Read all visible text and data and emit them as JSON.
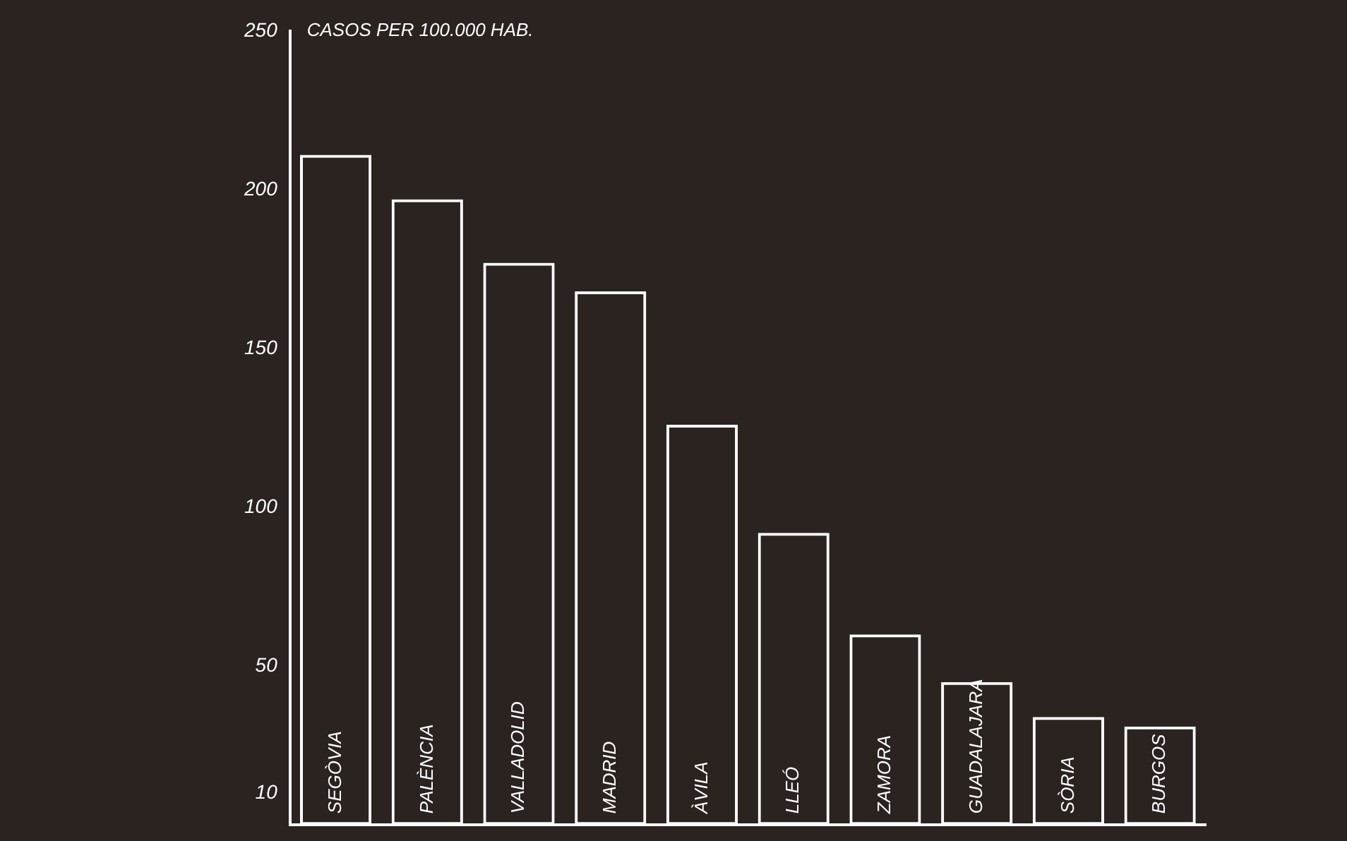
{
  "chart_data": {
    "type": "bar",
    "ylabel": "CASOS PER 100.000 HAB.",
    "categories": [
      "SEGÒVIA",
      "PALÈNCIA",
      "VALLADOLID",
      "MADRID",
      "ÀVILA",
      "LLEÓ",
      "ZAMORA",
      "GUADALAJARA",
      "SÒRIA",
      "BURGOS"
    ],
    "values": [
      211,
      197,
      177,
      168,
      126,
      92,
      60,
      45,
      34,
      31
    ],
    "color": "#ffffff",
    "ylim": [
      0,
      250
    ],
    "yticks": [
      10,
      50,
      100,
      150,
      200,
      250
    ],
    "grid": false,
    "legend": false
  }
}
